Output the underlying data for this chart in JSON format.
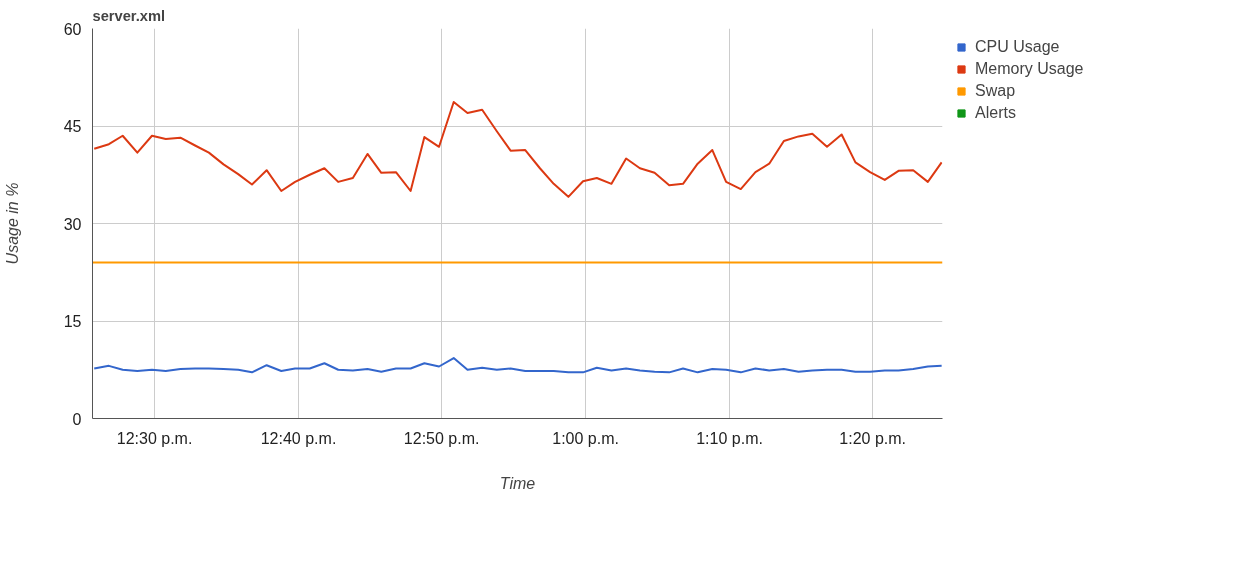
{
  "chart_data": {
    "type": "line",
    "title": "server.xml",
    "xlabel": "Time",
    "ylabel": "Usage in %",
    "x": [
      12.43,
      12.447,
      12.463,
      12.48,
      12.497,
      12.513,
      12.53,
      12.547,
      12.563,
      12.58,
      12.597,
      12.613,
      12.63,
      12.647,
      12.663,
      12.68,
      12.697,
      12.713,
      12.73,
      12.747,
      12.763,
      12.78,
      12.797,
      12.813,
      12.83,
      12.847,
      12.863,
      12.88,
      12.897,
      12.913,
      12.93,
      12.947,
      12.963,
      12.98,
      12.997,
      13.013,
      13.03,
      13.047,
      13.063,
      13.08,
      13.097,
      13.113,
      13.13,
      13.147,
      13.163,
      13.18,
      13.197,
      13.213,
      13.23,
      13.247,
      13.263,
      13.28,
      13.297,
      13.313,
      13.33,
      13.347,
      13.363,
      13.38,
      13.397,
      13.413
    ],
    "series": [
      {
        "name": "CPU Usage",
        "color": "#3366cc",
        "values": [
          7.7,
          8.1,
          7.5,
          7.3,
          7.5,
          7.3,
          7.6,
          7.7,
          7.7,
          7.6,
          7.5,
          7.1,
          8.2,
          7.3,
          7.7,
          7.7,
          8.5,
          7.5,
          7.4,
          7.6,
          7.2,
          7.7,
          7.7,
          8.5,
          8.0,
          9.3,
          7.5,
          7.8,
          7.5,
          7.7,
          7.3,
          7.3,
          7.3,
          7.1,
          7.1,
          7.8,
          7.4,
          7.7,
          7.4,
          7.2,
          7.1,
          7.7,
          7.1,
          7.6,
          7.5,
          7.1,
          7.7,
          7.4,
          7.6,
          7.2,
          7.4,
          7.5,
          7.5,
          7.2,
          7.2,
          7.4,
          7.4,
          7.6,
          8.0,
          8.1
        ]
      },
      {
        "name": "Memory Usage",
        "color": "#dc3912",
        "values": [
          41.5,
          42.2,
          43.5,
          40.9,
          43.5,
          43.0,
          43.2,
          42.0,
          40.9,
          39.1,
          37.6,
          36.0,
          38.2,
          35.0,
          36.4,
          37.5,
          38.5,
          36.4,
          37.0,
          40.7,
          37.8,
          37.9,
          35.0,
          43.3,
          41.8,
          48.7,
          47.0,
          47.5,
          44.2,
          41.2,
          41.3,
          38.5,
          36.1,
          34.1,
          36.5,
          37.0,
          36.1,
          40.0,
          38.5,
          37.8,
          35.9,
          36.1,
          39.2,
          41.3,
          36.4,
          35.3,
          37.9,
          39.2,
          42.7,
          43.4,
          43.8,
          41.8,
          43.7,
          39.4,
          37.9,
          36.7,
          38.1,
          38.2,
          36.4,
          39.4
        ]
      },
      {
        "name": "Swap",
        "color": "#ff9900",
        "x": [
          12.428,
          13.414
        ],
        "values": [
          24,
          24
        ]
      },
      {
        "name": "Alerts",
        "color": "#109618",
        "values": [
          null,
          null,
          null,
          null,
          null,
          null,
          null,
          null,
          null,
          null,
          null,
          null,
          null,
          null,
          null,
          null,
          null,
          null,
          null,
          null,
          null,
          null,
          null,
          null,
          null,
          null,
          null,
          null,
          null,
          null,
          null,
          null,
          null,
          null,
          null,
          null,
          null,
          null,
          null,
          null,
          null,
          null,
          null,
          null,
          null,
          null,
          null,
          null,
          null,
          null,
          null,
          null,
          null,
          null,
          null,
          null,
          null,
          null,
          null,
          null
        ]
      }
    ],
    "xlim": [
      12.428,
      13.414
    ],
    "xticks": [
      {
        "value": 12.5,
        "label": "12:30 p.m."
      },
      {
        "value": 12.667,
        "label": "12:40 p.m."
      },
      {
        "value": 12.833,
        "label": "12:50 p.m."
      },
      {
        "value": 13.0,
        "label": "1:00 p.m."
      },
      {
        "value": 13.167,
        "label": "1:10 p.m."
      },
      {
        "value": 13.333,
        "label": "1:20 p.m."
      }
    ],
    "ylim": [
      0,
      60
    ],
    "yticks": [
      0,
      15,
      30,
      45,
      60
    ],
    "grid": true,
    "legend": "right",
    "marker": "none",
    "line_style": "solid"
  }
}
